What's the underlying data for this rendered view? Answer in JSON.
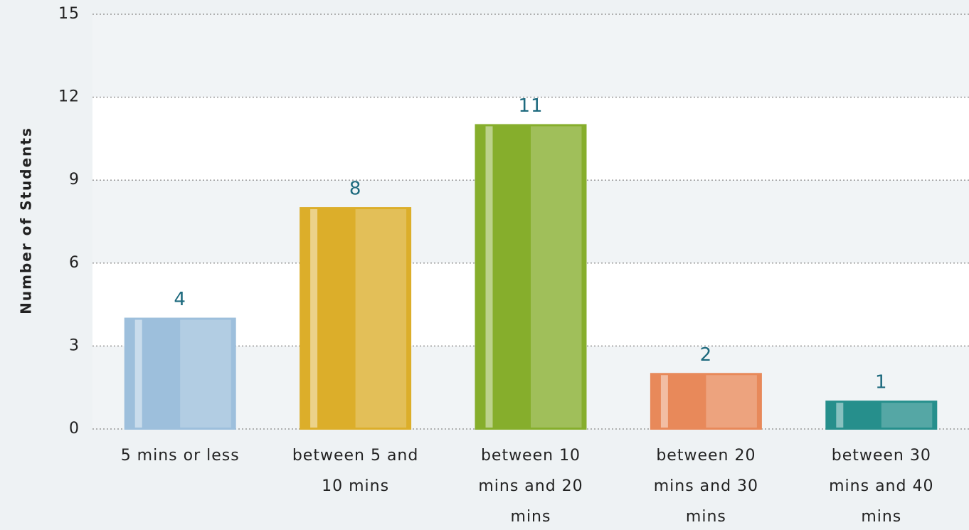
{
  "chart_data": {
    "type": "bar",
    "y_label": "Number of Students",
    "categories": [
      "5 mins or less",
      "between 5 and 10 mins",
      "between 10 mins and 20 mins",
      "between 20 mins and 30 mins",
      "between 30 mins and 40 mins"
    ],
    "values": [
      4,
      8,
      11,
      2,
      1
    ],
    "colors": [
      "#9dbfdc",
      "#dcae2a",
      "#86ae2c",
      "#e8895a",
      "#268f8c"
    ],
    "ylim": [
      0,
      15
    ],
    "yticks": [
      0,
      3,
      6,
      9,
      12,
      15
    ],
    "grid": true
  }
}
